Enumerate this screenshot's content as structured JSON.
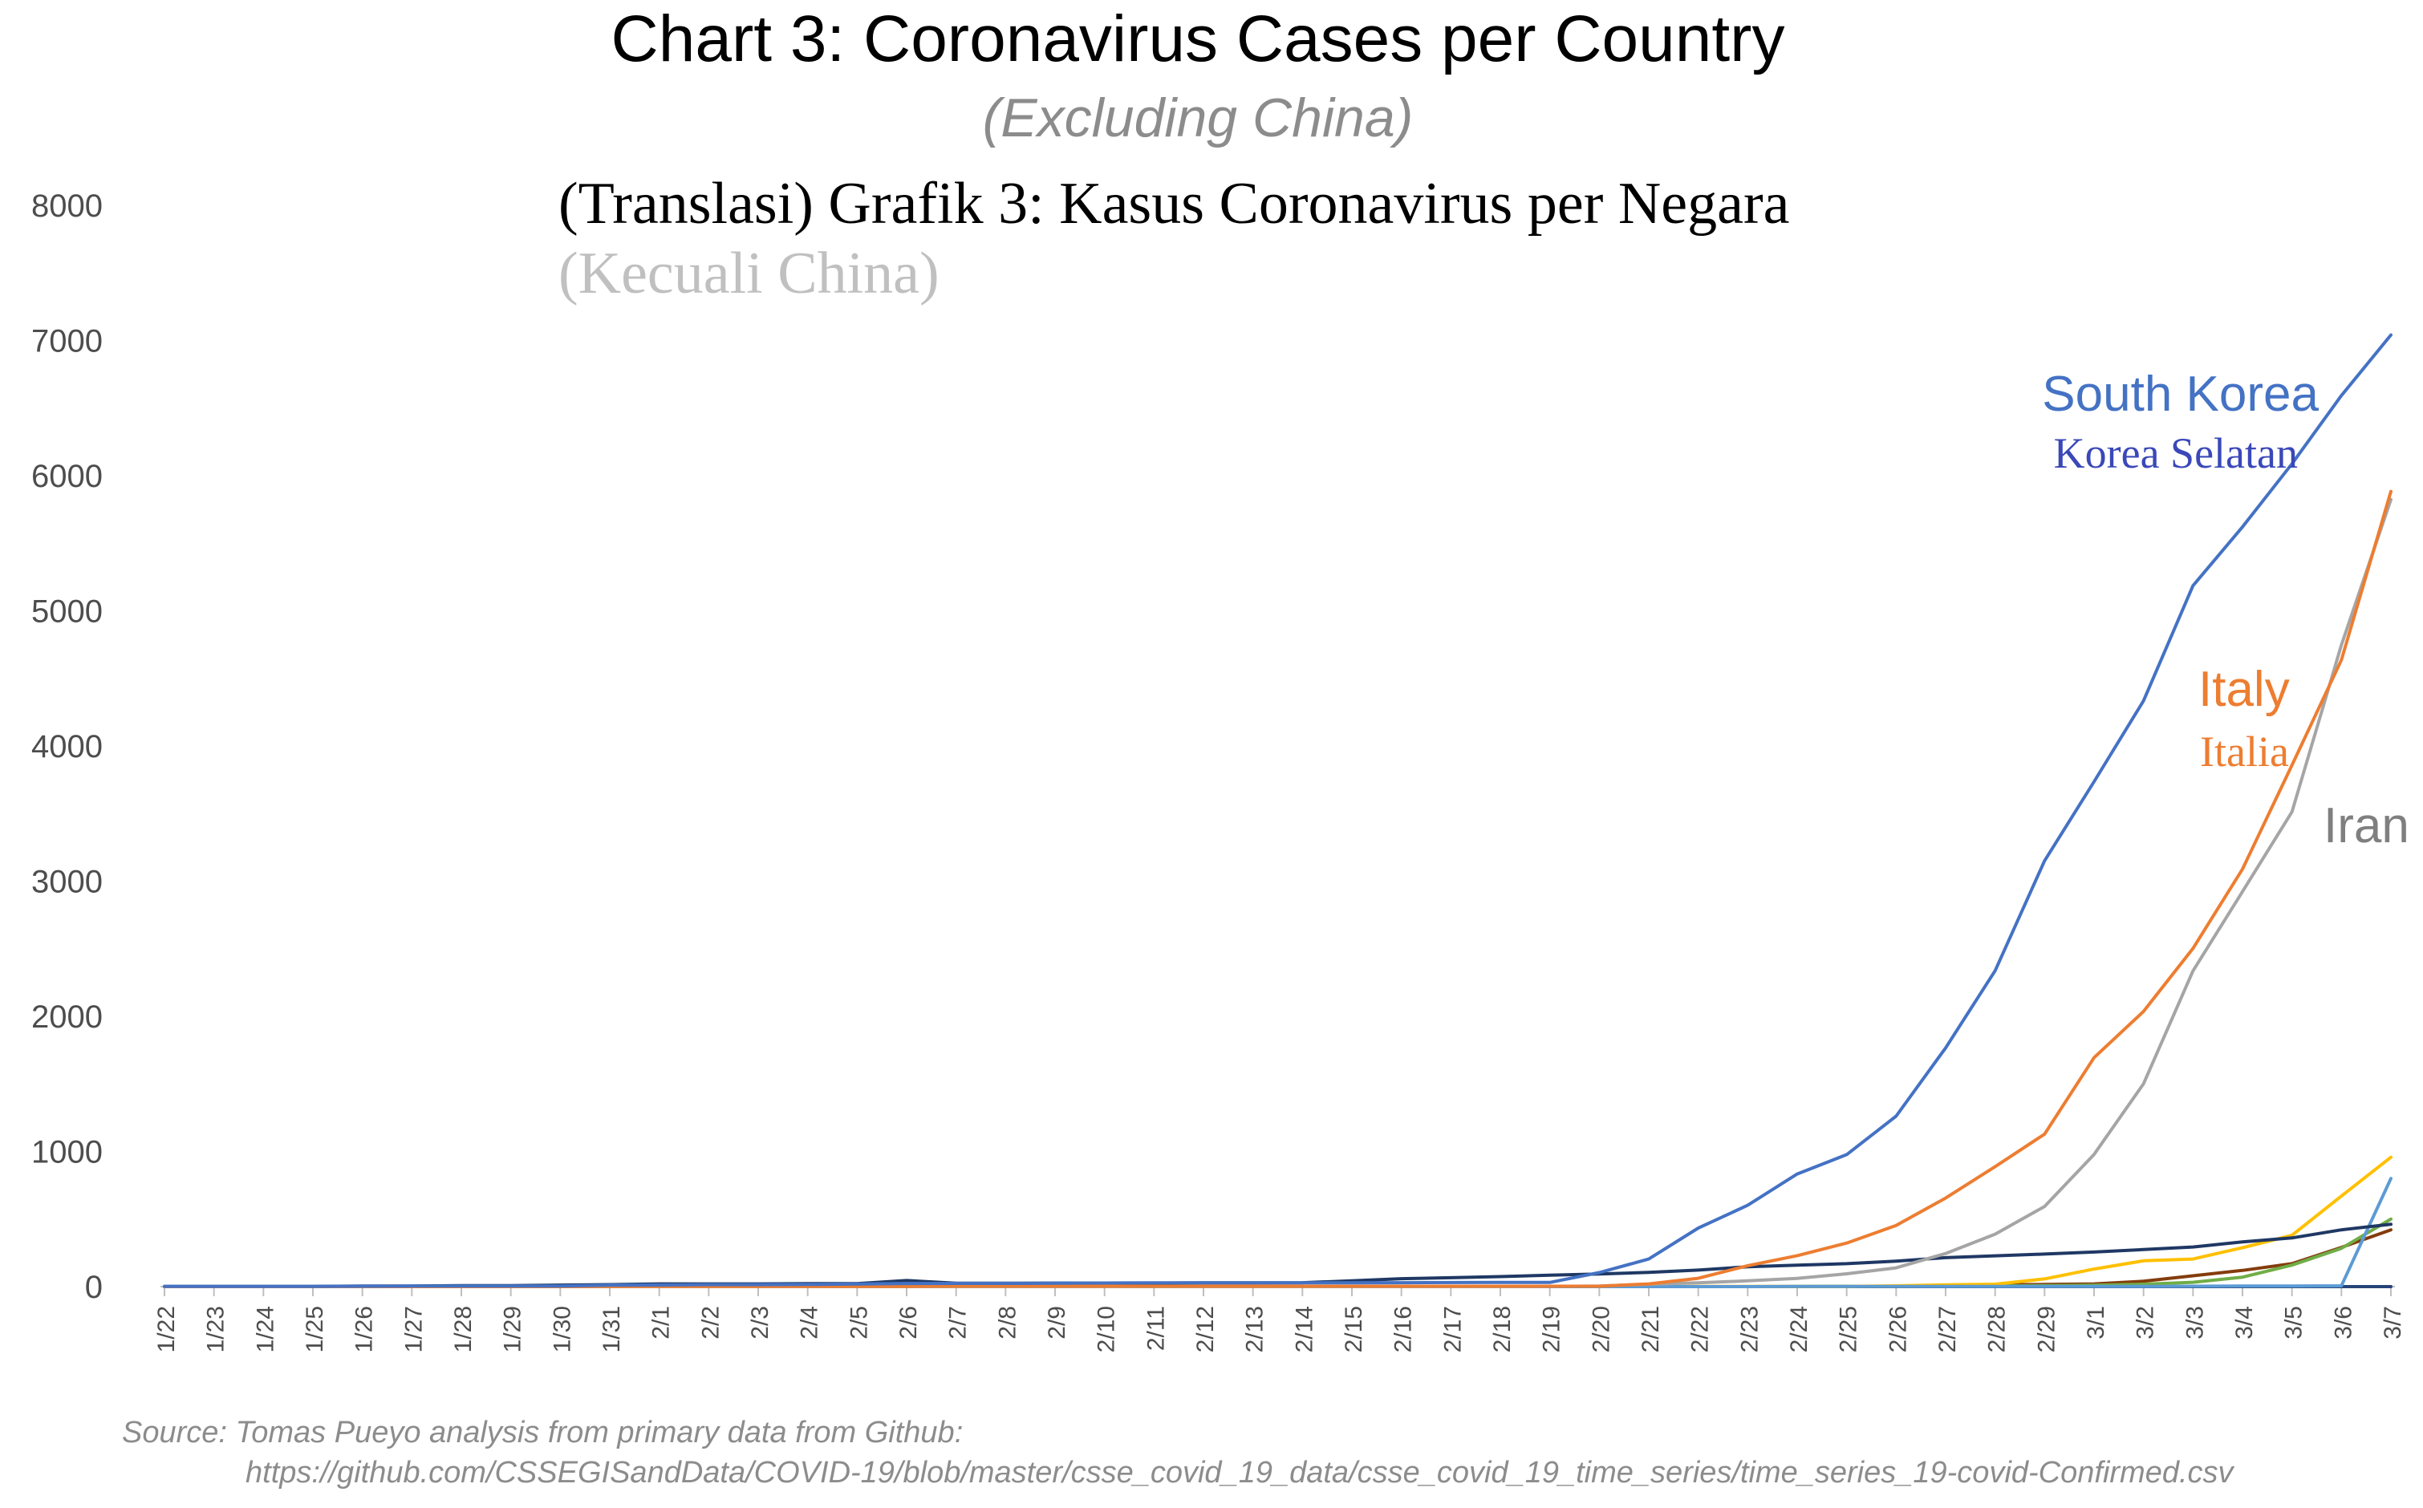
{
  "chart_data": {
    "type": "line",
    "title": "Chart 3: Coronavirus Cases per Country",
    "subtitle": "(Excluding China)",
    "translated_title": "(Translasi) Grafik 3: Kasus Coronavirus per Negara",
    "translated_subtitle": "(Kecuali China)",
    "xlabel": "",
    "ylabel": "",
    "ylim": [
      0,
      8000
    ],
    "yticks": [
      "0",
      "1000",
      "2000",
      "3000",
      "4000",
      "5000",
      "6000",
      "7000",
      "8000"
    ],
    "grid": false,
    "x": [
      "1/22",
      "1/23",
      "1/24",
      "1/25",
      "1/26",
      "1/27",
      "1/28",
      "1/29",
      "1/30",
      "1/31",
      "2/1",
      "2/2",
      "2/3",
      "2/4",
      "2/5",
      "2/6",
      "2/7",
      "2/8",
      "2/9",
      "2/10",
      "2/11",
      "2/12",
      "2/13",
      "2/14",
      "2/15",
      "2/16",
      "2/17",
      "2/18",
      "2/19",
      "2/20",
      "2/21",
      "2/22",
      "2/23",
      "2/24",
      "2/25",
      "2/26",
      "2/27",
      "2/28",
      "2/29",
      "3/1",
      "3/2",
      "3/3",
      "3/4",
      "3/5",
      "3/6",
      "3/7"
    ],
    "series": [
      {
        "color": "#4472c4",
        "values": [
          1,
          1,
          2,
          2,
          3,
          4,
          4,
          4,
          4,
          11,
          12,
          15,
          15,
          16,
          19,
          23,
          24,
          24,
          25,
          27,
          28,
          28,
          28,
          28,
          28,
          29,
          30,
          31,
          31,
          104,
          204,
          433,
          602,
          833,
          977,
          1261,
          1766,
          2337,
          3150,
          3736,
          4335,
          5186,
          5621,
          6088,
          6593,
          7041
        ]
      },
      {
        "color": "#ed7d31",
        "values": [
          0,
          0,
          0,
          0,
          0,
          0,
          0,
          0,
          0,
          2,
          2,
          2,
          2,
          2,
          2,
          2,
          3,
          3,
          3,
          3,
          3,
          3,
          3,
          3,
          3,
          3,
          3,
          3,
          3,
          3,
          20,
          62,
          155,
          229,
          322,
          453,
          655,
          888,
          1128,
          1694,
          2036,
          2502,
          3089,
          3858,
          4636,
          5883
        ]
      },
      {
        "color": "#a5a5a5",
        "values": [
          0,
          0,
          0,
          0,
          0,
          0,
          0,
          0,
          0,
          0,
          0,
          0,
          0,
          0,
          0,
          0,
          0,
          0,
          0,
          0,
          0,
          0,
          0,
          0,
          0,
          0,
          0,
          0,
          2,
          5,
          18,
          28,
          43,
          61,
          95,
          139,
          245,
          388,
          593,
          978,
          1501,
          2336,
          2922,
          3513,
          4747,
          5823
        ]
      },
      {
        "color": "#1f3864",
        "values": [
          2,
          2,
          2,
          2,
          4,
          4,
          7,
          7,
          11,
          15,
          20,
          20,
          20,
          22,
          22,
          45,
          25,
          25,
          26,
          26,
          26,
          28,
          28,
          29,
          43,
          59,
          66,
          74,
          84,
          94,
          105,
          122,
          147,
          159,
          170,
          189,
          214,
          228,
          241,
          256,
          274,
          293,
          331,
          360,
          420,
          461
        ]
      },
      {
        "color": "#5b9bd5",
        "values": [
          0,
          0,
          0,
          0,
          0,
          0,
          0,
          0,
          0,
          0,
          0,
          0,
          0,
          0,
          0,
          0,
          0,
          0,
          0,
          0,
          0,
          0,
          0,
          0,
          0,
          0,
          0,
          0,
          0,
          0,
          0,
          0,
          0,
          1,
          1,
          1,
          1,
          2,
          2,
          2,
          2,
          3,
          4,
          5,
          6,
          800
        ]
      },
      {
        "color": "#ffc000",
        "values": [
          0,
          0,
          0,
          0,
          0,
          0,
          0,
          0,
          0,
          0,
          0,
          0,
          0,
          0,
          0,
          0,
          0,
          0,
          0,
          0,
          0,
          0,
          0,
          0,
          0,
          0,
          0,
          0,
          0,
          0,
          0,
          1,
          1,
          2,
          2,
          6,
          13,
          18,
          57,
          130,
          191,
          204,
          288,
          380,
          670,
          957
        ]
      },
      {
        "color": "#70ad47",
        "values": [
          0,
          0,
          0,
          0,
          0,
          0,
          0,
          0,
          0,
          0,
          0,
          0,
          0,
          0,
          0,
          0,
          0,
          0,
          0,
          0,
          0,
          0,
          0,
          0,
          0,
          0,
          0,
          0,
          0,
          0,
          0,
          0,
          0,
          1,
          1,
          3,
          3,
          4,
          8,
          10,
          18,
          32,
          70,
          159,
          283,
          500
        ]
      },
      {
        "color": "#843c0c",
        "values": [
          0,
          0,
          0,
          0,
          0,
          0,
          0,
          0,
          0,
          0,
          0,
          0,
          0,
          0,
          0,
          0,
          0,
          0,
          0,
          0,
          0,
          0,
          0,
          0,
          0,
          0,
          0,
          0,
          0,
          0,
          0,
          0,
          0,
          0,
          2,
          2,
          3,
          14,
          16,
          20,
          40,
          80,
          120,
          170,
          290,
          420
        ]
      },
      {
        "color": "#264478",
        "values": [
          0,
          0,
          0,
          0,
          0,
          0,
          0,
          0,
          0,
          0,
          0,
          0,
          0,
          0,
          0,
          0,
          0,
          0,
          0,
          0,
          0,
          0,
          0,
          0,
          0,
          0,
          0,
          0,
          0,
          0,
          0,
          0,
          0,
          0,
          0,
          0,
          0,
          0,
          0,
          0,
          0,
          0,
          0,
          0,
          0,
          0
        ]
      }
    ],
    "annotations": [
      {
        "text": "South Korea",
        "color": "#4472c4"
      },
      {
        "text": "Korea Selatan",
        "color": "#3a48b8"
      },
      {
        "text": "Italy",
        "color": "#ed7d31"
      },
      {
        "text": "Italia",
        "color": "#ed7d31"
      },
      {
        "text": "Iran",
        "color": "#7f7f7f"
      }
    ],
    "source": "Source: Tomas Pueyo analysis from primary data from Github:",
    "source_url": "https://github.com/CSSEGISandData/COVID-19/blob/master/csse_covid_19_data/csse_covid_19_time_series/time_series_19-covid-Confirmed.csv"
  }
}
